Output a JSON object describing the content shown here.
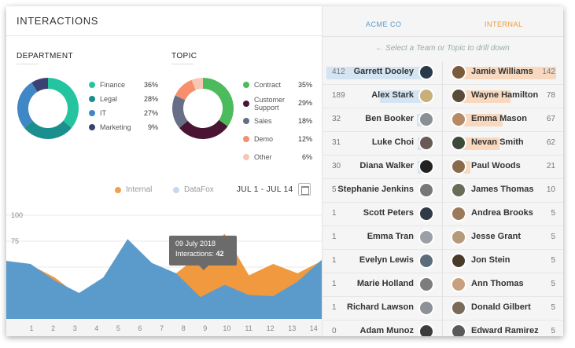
{
  "header": {
    "title": "INTERACTIONS"
  },
  "department": {
    "label": "DEPARTMENT",
    "items": [
      {
        "name": "Finance",
        "pct": "36%",
        "value": 36,
        "color": "#25c4a0"
      },
      {
        "name": "Legal",
        "pct": "28%",
        "value": 28,
        "color": "#1a8f8e"
      },
      {
        "name": "IT",
        "pct": "27%",
        "value": 27,
        "color": "#3f88c5"
      },
      {
        "name": "Marketing",
        "pct": "9%",
        "value": 9,
        "color": "#3a4173"
      }
    ]
  },
  "topic": {
    "label": "TOPIC",
    "items": [
      {
        "name": "Contract",
        "pct": "35%",
        "value": 35,
        "color": "#4cbb5c"
      },
      {
        "name": "Customer Support",
        "pct": "29%",
        "value": 29,
        "color": "#4a1532"
      },
      {
        "name": "Sales",
        "pct": "18%",
        "value": 18,
        "color": "#666f86"
      },
      {
        "name": "Demo",
        "pct": "12%",
        "value": 12,
        "color": "#f58f6e"
      },
      {
        "name": "Other",
        "pct": "6%",
        "value": 6,
        "color": "#f7c7b3"
      }
    ]
  },
  "chart_legend": {
    "internal": "Internal",
    "datafox": "DataFox",
    "internal_color": "#f0a050",
    "datafox_color": "#c6d9ee"
  },
  "date_range": "JUL 1 - JUL 14",
  "chart_data": {
    "type": "area",
    "x": [
      1,
      2,
      3,
      4,
      5,
      6,
      7,
      8,
      9,
      10,
      11,
      12,
      13,
      14
    ],
    "ylim": [
      0,
      100
    ],
    "yticks": [
      25,
      50,
      75,
      100
    ],
    "series": [
      {
        "name": "DataFox",
        "color": "#5a9bcc",
        "values": [
          56,
          53,
          37,
          25,
          40,
          77,
          54,
          44,
          21,
          33,
          23,
          22,
          36,
          57
        ]
      },
      {
        "name": "Internal",
        "color": "#f0993e",
        "values": [
          56,
          52,
          40,
          22,
          40,
          77,
          51,
          44,
          62,
          82,
          42,
          53,
          44,
          56
        ]
      }
    ]
  },
  "tooltip": {
    "date": "09 July 2018",
    "label": "Interactions:",
    "value": "42"
  },
  "teams": {
    "left": "ACME CO",
    "right": "INTERNAL",
    "left_color": "#5a9bcc",
    "right_color": "#f0993e"
  },
  "hint": "← Select a Team or Topic to drill down",
  "rows": [
    {
      "lc": "412",
      "ln": "Garrett Dooley",
      "lv": 412,
      "rn": "Jamie Williams",
      "rc": "142",
      "rv": 142
    },
    {
      "lc": "189",
      "ln": "Alex Stark",
      "lv": 189,
      "rn": "Wayne Hamilton",
      "rc": "78",
      "rv": 78
    },
    {
      "lc": "32",
      "ln": "Ben Booker",
      "lv": 32,
      "rn": "Emma Mason",
      "rc": "67",
      "rv": 67
    },
    {
      "lc": "31",
      "ln": "Luke Choi",
      "lv": 31,
      "rn": "Nevan Smith",
      "rc": "62",
      "rv": 62
    },
    {
      "lc": "30",
      "ln": "Diana Walker",
      "lv": 30,
      "rn": "Paul Woods",
      "rc": "21",
      "rv": 21
    },
    {
      "lc": "5",
      "ln": "Stephanie Jenkins",
      "lv": 5,
      "rn": "James Thomas",
      "rc": "10",
      "rv": 10
    },
    {
      "lc": "1",
      "ln": "Scott Peters",
      "lv": 1,
      "rn": "Andrea Brooks",
      "rc": "5",
      "rv": 5
    },
    {
      "lc": "1",
      "ln": "Emma Tran",
      "lv": 1,
      "rn": "Jesse Grant",
      "rc": "5",
      "rv": 5
    },
    {
      "lc": "1",
      "ln": "Evelyn Lewis",
      "lv": 1,
      "rn": "Jon Stein",
      "rc": "5",
      "rv": 5
    },
    {
      "lc": "1",
      "ln": "Marie Holland",
      "lv": 1,
      "rn": "Ann Thomas",
      "rc": "5",
      "rv": 5
    },
    {
      "lc": "1",
      "ln": "Richard Lawson",
      "lv": 1,
      "rn": "Donald Gilbert",
      "rc": "5",
      "rv": 5
    },
    {
      "lc": "0",
      "ln": "Adam Munoz",
      "lv": 0,
      "rn": "Edward Ramirez",
      "rc": "5",
      "rv": 5
    }
  ]
}
